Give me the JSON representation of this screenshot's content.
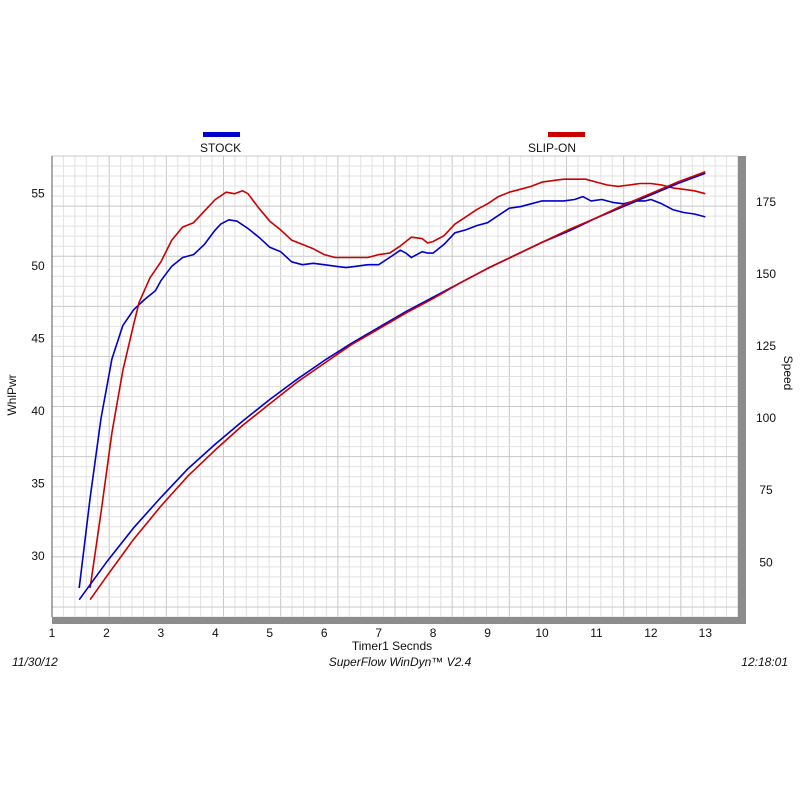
{
  "chart_data": {
    "type": "line",
    "xlabel": "Timer1 Secnds",
    "ylabel_left": "WhlPwr",
    "ylabel_right": "Speed",
    "xlim": [
      1,
      13.6
    ],
    "ylim_left": [
      25.8,
      57.6
    ],
    "ylim_right": [
      31,
      191
    ],
    "x_ticks": [
      1,
      2,
      3,
      4,
      5,
      6,
      7,
      8,
      9,
      10,
      11,
      12,
      13
    ],
    "y_left_ticks": [
      30,
      35,
      40,
      45,
      50,
      55
    ],
    "y_right_ticks": [
      50,
      75,
      100,
      125,
      150,
      175
    ],
    "grid": true,
    "legend_position": "top",
    "series": [
      {
        "name": "STOCK",
        "color": "#0000cc",
        "axis": "left",
        "x": [
          1.5,
          1.7,
          1.9,
          2.1,
          2.3,
          2.5,
          2.7,
          2.9,
          3.0,
          3.2,
          3.4,
          3.6,
          3.8,
          4.0,
          4.1,
          4.25,
          4.4,
          4.6,
          4.8,
          5.0,
          5.2,
          5.4,
          5.6,
          5.8,
          6.0,
          6.2,
          6.4,
          6.6,
          6.8,
          7.0,
          7.2,
          7.4,
          7.5,
          7.6,
          7.8,
          7.9,
          8.0,
          8.2,
          8.4,
          8.6,
          8.8,
          9.0,
          9.2,
          9.4,
          9.6,
          9.8,
          10.0,
          10.2,
          10.4,
          10.6,
          10.75,
          10.9,
          11.1,
          11.3,
          11.5,
          11.7,
          11.9,
          12.0,
          12.2,
          12.4,
          12.6,
          12.8,
          13.0
        ],
        "y": [
          27.8,
          34.0,
          39.5,
          43.6,
          45.9,
          47.0,
          47.7,
          48.3,
          49.0,
          50.0,
          50.6,
          50.8,
          51.5,
          52.5,
          52.9,
          53.2,
          53.1,
          52.6,
          52.0,
          51.3,
          51.0,
          50.3,
          50.1,
          50.2,
          50.1,
          50.0,
          49.9,
          50.0,
          50.1,
          50.1,
          50.6,
          51.1,
          50.9,
          50.6,
          51.0,
          50.9,
          50.9,
          51.5,
          52.3,
          52.5,
          52.8,
          53.0,
          53.5,
          54.0,
          54.1,
          54.3,
          54.5,
          54.5,
          54.5,
          54.6,
          54.8,
          54.5,
          54.6,
          54.4,
          54.3,
          54.5,
          54.5,
          54.6,
          54.3,
          53.9,
          53.7,
          53.6,
          53.4
        ]
      },
      {
        "name": "SLIP-ON",
        "color": "#cc0000",
        "axis": "left",
        "x": [
          1.7,
          1.9,
          2.1,
          2.3,
          2.5,
          2.6,
          2.8,
          3.0,
          3.2,
          3.4,
          3.6,
          3.8,
          4.0,
          4.2,
          4.35,
          4.5,
          4.6,
          4.8,
          5.0,
          5.2,
          5.4,
          5.6,
          5.8,
          6.0,
          6.2,
          6.4,
          6.6,
          6.8,
          7.0,
          7.2,
          7.4,
          7.6,
          7.8,
          7.9,
          8.0,
          8.2,
          8.4,
          8.6,
          8.8,
          9.0,
          9.2,
          9.4,
          9.6,
          9.8,
          10.0,
          10.2,
          10.4,
          10.6,
          10.8,
          11.0,
          11.2,
          11.4,
          11.6,
          11.8,
          12.0,
          12.2,
          12.4,
          12.6,
          12.8,
          13.0
        ],
        "y": [
          27.8,
          33.0,
          38.5,
          42.8,
          46.0,
          47.5,
          49.2,
          50.3,
          51.8,
          52.7,
          53.0,
          53.8,
          54.6,
          55.1,
          55.0,
          55.2,
          55.0,
          54.0,
          53.1,
          52.5,
          51.8,
          51.5,
          51.2,
          50.8,
          50.6,
          50.6,
          50.6,
          50.6,
          50.8,
          50.9,
          51.4,
          52.0,
          51.9,
          51.6,
          51.7,
          52.1,
          52.9,
          53.4,
          53.9,
          54.3,
          54.8,
          55.1,
          55.3,
          55.5,
          55.8,
          55.9,
          56.0,
          56.0,
          56.0,
          55.8,
          55.6,
          55.5,
          55.6,
          55.7,
          55.7,
          55.6,
          55.4,
          55.3,
          55.2,
          55.0
        ]
      },
      {
        "name": "STOCK",
        "color": "#0000cc",
        "axis": "right",
        "x": [
          1.5,
          2.0,
          2.5,
          3.0,
          3.5,
          4.0,
          4.5,
          5.0,
          5.5,
          6.0,
          6.5,
          7.0,
          7.5,
          8.0,
          8.5,
          9.0,
          9.5,
          10.0,
          10.5,
          11.0,
          11.5,
          12.0,
          12.5,
          13.0
        ],
        "y": [
          37.0,
          50.0,
          62.0,
          72.5,
          82.5,
          91.0,
          99.0,
          106.5,
          113.5,
          120.0,
          126.0,
          131.5,
          137.0,
          142.0,
          147.0,
          152.0,
          156.5,
          161.0,
          165.0,
          169.5,
          173.5,
          177.5,
          181.5,
          185.0
        ]
      },
      {
        "name": "SLIP-ON",
        "color": "#cc0000",
        "axis": "right",
        "x": [
          1.7,
          2.0,
          2.5,
          3.0,
          3.5,
          4.0,
          4.5,
          5.0,
          5.5,
          6.0,
          6.5,
          7.0,
          7.5,
          8.0,
          8.5,
          9.0,
          9.5,
          10.0,
          10.5,
          11.0,
          11.5,
          12.0,
          12.5,
          13.0
        ],
        "y": [
          37.0,
          45.0,
          58.0,
          69.5,
          80.0,
          89.0,
          97.5,
          105.0,
          112.5,
          119.0,
          125.5,
          131.0,
          136.5,
          141.5,
          147.0,
          152.0,
          156.5,
          161.0,
          165.5,
          169.5,
          174.0,
          178.0,
          182.0,
          185.5
        ]
      }
    ]
  },
  "legend": [
    {
      "label": "STOCK",
      "color": "#0000cc"
    },
    {
      "label": "SLIP-ON",
      "color": "#cc0000"
    }
  ],
  "footer": {
    "date": "11/30/12",
    "software": "SuperFlow WinDyn™  V2.4",
    "time": "12:18:01"
  }
}
